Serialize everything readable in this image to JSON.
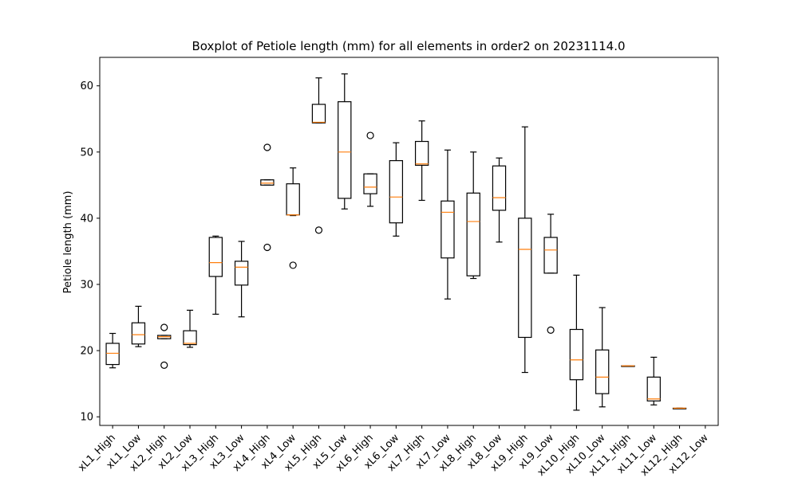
{
  "chart_data": {
    "type": "boxplot",
    "title": "Boxplot of Petiole length (mm) for all elements in order2 on 20231114.0",
    "xlabel": "",
    "ylabel": "Petiole length (mm)",
    "ylim": [
      8.7,
      64.3
    ],
    "yticks": [
      10,
      20,
      30,
      40,
      50,
      60
    ],
    "grid": false,
    "colors": {
      "box": "#000000",
      "median": "#ff7f0e",
      "flier": "#000000"
    },
    "categories": [
      "xL1_High",
      "xL1_Low",
      "xL2_High",
      "xL2_Low",
      "xL3_High",
      "xL3_Low",
      "xL4_High",
      "xL4_Low",
      "xL5_High",
      "xL5_Low",
      "xL6_High",
      "xL6_Low",
      "xL7_High",
      "xL7_Low",
      "xL8_High",
      "xL8_Low",
      "xL9_High",
      "xL9_Low",
      "xL10_High",
      "xL10_Low",
      "xL11_High",
      "xL11_Low",
      "xL12_High",
      "xL12_Low"
    ],
    "boxes": [
      {
        "whislo": 17.4,
        "q1": 17.9,
        "med": 19.6,
        "q3": 21.1,
        "whishi": 22.6,
        "fliers": []
      },
      {
        "whislo": 20.6,
        "q1": 21.0,
        "med": 22.4,
        "q3": 24.2,
        "whishi": 26.7,
        "fliers": []
      },
      {
        "whislo": 21.8,
        "q1": 21.8,
        "med": 22.1,
        "q3": 22.3,
        "whishi": 22.3,
        "fliers": [
          23.5,
          17.8
        ]
      },
      {
        "whislo": 20.5,
        "q1": 20.9,
        "med": 21.1,
        "q3": 23.0,
        "whishi": 26.1,
        "fliers": []
      },
      {
        "whislo": 25.5,
        "q1": 31.2,
        "med": 33.3,
        "q3": 37.1,
        "whishi": 37.3,
        "fliers": []
      },
      {
        "whislo": 25.1,
        "q1": 29.9,
        "med": 32.6,
        "q3": 33.5,
        "whishi": 36.5,
        "fliers": []
      },
      {
        "whislo": 45.0,
        "q1": 45.0,
        "med": 45.3,
        "q3": 45.8,
        "whishi": 45.8,
        "fliers": [
          50.7,
          35.6
        ]
      },
      {
        "whislo": 40.4,
        "q1": 40.5,
        "med": 40.5,
        "q3": 45.2,
        "whishi": 47.6,
        "fliers": [
          32.9
        ]
      },
      {
        "whislo": 54.4,
        "q1": 54.4,
        "med": 54.5,
        "q3": 57.2,
        "whishi": 61.2,
        "fliers": [
          38.2
        ]
      },
      {
        "whislo": 41.4,
        "q1": 43.0,
        "med": 50.0,
        "q3": 57.6,
        "whishi": 61.8,
        "fliers": []
      },
      {
        "whislo": 41.8,
        "q1": 43.7,
        "med": 44.7,
        "q3": 46.7,
        "whishi": 46.7,
        "fliers": [
          52.5
        ]
      },
      {
        "whislo": 37.3,
        "q1": 39.3,
        "med": 43.2,
        "q3": 48.7,
        "whishi": 51.4,
        "fliers": []
      },
      {
        "whislo": 42.7,
        "q1": 48.0,
        "med": 48.2,
        "q3": 51.6,
        "whishi": 54.7,
        "fliers": []
      },
      {
        "whislo": 27.8,
        "q1": 34.0,
        "med": 40.9,
        "q3": 42.6,
        "whishi": 50.3,
        "fliers": []
      },
      {
        "whislo": 30.9,
        "q1": 31.3,
        "med": 39.5,
        "q3": 43.8,
        "whishi": 50.0,
        "fliers": []
      },
      {
        "whislo": 36.4,
        "q1": 41.2,
        "med": 43.1,
        "q3": 47.9,
        "whishi": 49.1,
        "fliers": []
      },
      {
        "whislo": 16.7,
        "q1": 22.0,
        "med": 35.3,
        "q3": 40.0,
        "whishi": 53.8,
        "fliers": []
      },
      {
        "whislo": 31.7,
        "q1": 31.7,
        "med": 35.2,
        "q3": 37.1,
        "whishi": 40.6,
        "fliers": [
          23.1
        ]
      },
      {
        "whislo": 11.0,
        "q1": 15.6,
        "med": 18.6,
        "q3": 23.2,
        "whishi": 31.4,
        "fliers": []
      },
      {
        "whislo": 11.5,
        "q1": 13.5,
        "med": 16.0,
        "q3": 20.1,
        "whishi": 26.5,
        "fliers": []
      },
      {
        "whislo": 17.7,
        "q1": 17.7,
        "med": 17.7,
        "q3": 17.7,
        "whishi": 17.7,
        "fliers": []
      },
      {
        "whislo": 11.8,
        "q1": 12.4,
        "med": 12.7,
        "q3": 16.0,
        "whishi": 19.0,
        "fliers": []
      },
      {
        "whislo": 11.3,
        "q1": 11.3,
        "med": 11.3,
        "q3": 11.3,
        "whishi": 11.3,
        "fliers": []
      },
      null
    ]
  }
}
